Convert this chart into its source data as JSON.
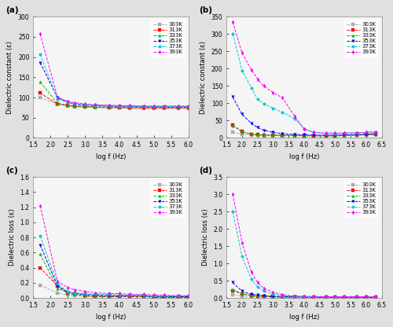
{
  "colors": [
    "#aaaaaa",
    "#ff0000",
    "#00bb00",
    "#0000ff",
    "#00cccc",
    "#ff00ff"
  ],
  "markers": [
    "s",
    "s",
    "^",
    "v",
    "o",
    "d"
  ],
  "labels": [
    "303K",
    "313K",
    "333K",
    "353K",
    "373K",
    "393K"
  ],
  "panel_labels": [
    "(a)",
    "(b)",
    "(c)",
    "(d)"
  ],
  "a_x": [
    1.7,
    2.2,
    2.5,
    2.7,
    3.0,
    3.3,
    3.7,
    4.0,
    4.3,
    4.7,
    5.0,
    5.3,
    5.7,
    6.0
  ],
  "a_y": [
    [
      100,
      83,
      79,
      77,
      76,
      75,
      74,
      74,
      73,
      73,
      73,
      73,
      73,
      73
    ],
    [
      111,
      84,
      80,
      78,
      77,
      76,
      75,
      75,
      74,
      74,
      74,
      74,
      74,
      74
    ],
    [
      138,
      86,
      81,
      79,
      78,
      77,
      77,
      76,
      76,
      76,
      76,
      76,
      76,
      76
    ],
    [
      186,
      100,
      88,
      83,
      81,
      80,
      79,
      78,
      78,
      77,
      77,
      77,
      77,
      77
    ],
    [
      207,
      96,
      88,
      85,
      83,
      81,
      80,
      79,
      79,
      78,
      78,
      78,
      78,
      78
    ],
    [
      257,
      101,
      90,
      87,
      84,
      82,
      81,
      80,
      80,
      79,
      79,
      79,
      79,
      79
    ]
  ],
  "b_x": [
    1.7,
    2.0,
    2.3,
    2.5,
    2.7,
    3.0,
    3.3,
    3.7,
    4.0,
    4.3,
    4.7,
    5.0,
    5.3,
    5.7,
    6.0,
    6.3
  ],
  "b_y": [
    [
      16,
      11,
      9,
      8,
      7,
      7,
      6,
      6,
      6,
      5,
      5,
      5,
      6,
      7,
      8,
      9
    ],
    [
      37,
      18,
      11,
      9,
      8,
      8,
      7,
      7,
      6,
      6,
      6,
      6,
      7,
      8,
      9,
      10
    ],
    [
      36,
      17,
      11,
      9,
      8,
      8,
      8,
      8,
      7,
      7,
      7,
      7,
      8,
      9,
      10,
      11
    ],
    [
      118,
      68,
      42,
      30,
      22,
      16,
      12,
      10,
      9,
      8,
      8,
      8,
      9,
      10,
      11,
      12
    ],
    [
      300,
      195,
      145,
      112,
      98,
      86,
      74,
      55,
      27,
      16,
      13,
      13,
      14,
      15,
      16,
      17
    ],
    [
      335,
      245,
      196,
      170,
      150,
      131,
      116,
      62,
      25,
      16,
      14,
      14,
      14,
      15,
      16,
      17
    ]
  ],
  "c_x": [
    1.7,
    2.2,
    2.5,
    2.7,
    3.0,
    3.3,
    3.7,
    4.0,
    4.3,
    4.7,
    5.0,
    5.3,
    5.7,
    6.0
  ],
  "c_y": [
    [
      0.17,
      0.07,
      0.04,
      0.03,
      0.02,
      0.02,
      0.02,
      0.02,
      0.02,
      0.02,
      0.01,
      0.01,
      0.01,
      0.01
    ],
    [
      0.4,
      0.16,
      0.07,
      0.05,
      0.03,
      0.02,
      0.02,
      0.02,
      0.02,
      0.02,
      0.01,
      0.01,
      0.01,
      0.01
    ],
    [
      0.58,
      0.13,
      0.07,
      0.05,
      0.04,
      0.03,
      0.03,
      0.03,
      0.03,
      0.02,
      0.02,
      0.02,
      0.02,
      0.02
    ],
    [
      0.7,
      0.16,
      0.08,
      0.06,
      0.05,
      0.04,
      0.03,
      0.03,
      0.03,
      0.03,
      0.02,
      0.02,
      0.02,
      0.02
    ],
    [
      0.82,
      0.19,
      0.09,
      0.07,
      0.06,
      0.05,
      0.05,
      0.04,
      0.04,
      0.04,
      0.03,
      0.03,
      0.03,
      0.03
    ],
    [
      1.22,
      0.22,
      0.14,
      0.11,
      0.09,
      0.07,
      0.06,
      0.06,
      0.05,
      0.05,
      0.04,
      0.04,
      0.03,
      0.03
    ]
  ],
  "d_x": [
    1.7,
    2.0,
    2.3,
    2.5,
    2.7,
    3.0,
    3.3,
    3.7,
    4.0,
    4.3,
    4.7,
    5.0,
    5.3,
    5.7,
    6.0,
    6.3
  ],
  "d_y": [
    [
      0.1,
      0.06,
      0.04,
      0.04,
      0.03,
      0.03,
      0.02,
      0.02,
      0.02,
      0.02,
      0.02,
      0.01,
      0.01,
      0.01,
      0.01,
      0.01
    ],
    [
      0.22,
      0.12,
      0.07,
      0.06,
      0.05,
      0.04,
      0.03,
      0.03,
      0.03,
      0.03,
      0.02,
      0.02,
      0.02,
      0.02,
      0.02,
      0.02
    ],
    [
      0.25,
      0.13,
      0.08,
      0.07,
      0.06,
      0.05,
      0.04,
      0.04,
      0.04,
      0.03,
      0.03,
      0.03,
      0.03,
      0.03,
      0.03,
      0.03
    ],
    [
      0.45,
      0.2,
      0.11,
      0.09,
      0.07,
      0.05,
      0.04,
      0.04,
      0.03,
      0.03,
      0.03,
      0.03,
      0.03,
      0.03,
      0.03,
      0.03
    ],
    [
      2.5,
      1.2,
      0.55,
      0.32,
      0.2,
      0.12,
      0.07,
      0.05,
      0.04,
      0.04,
      0.04,
      0.04,
      0.04,
      0.04,
      0.04,
      0.04
    ],
    [
      3.0,
      1.6,
      0.75,
      0.45,
      0.28,
      0.17,
      0.1,
      0.06,
      0.05,
      0.05,
      0.04,
      0.04,
      0.04,
      0.04,
      0.04,
      0.04
    ]
  ],
  "a_ylim": [
    0,
    300
  ],
  "b_ylim": [
    0,
    350
  ],
  "c_ylim": [
    0,
    1.6
  ],
  "d_ylim": [
    0,
    3.5
  ],
  "a_xlim": [
    1.5,
    6.0
  ],
  "b_xlim": [
    1.5,
    6.5
  ],
  "c_xlim": [
    1.5,
    6.0
  ],
  "d_xlim": [
    1.5,
    6.5
  ],
  "a_yticks": [
    0,
    50,
    100,
    150,
    200,
    250,
    300
  ],
  "b_yticks": [
    0,
    50,
    100,
    150,
    200,
    250,
    300,
    350
  ],
  "c_yticks": [
    0.0,
    0.2,
    0.4,
    0.6,
    0.8,
    1.0,
    1.2,
    1.4,
    1.6
  ],
  "d_yticks": [
    0.0,
    0.5,
    1.0,
    1.5,
    2.0,
    2.5,
    3.0,
    3.5
  ],
  "a_xticks": [
    1.5,
    2.0,
    2.5,
    3.0,
    3.5,
    4.0,
    4.5,
    5.0,
    5.5,
    6.0
  ],
  "b_xticks": [
    1.5,
    2.0,
    2.5,
    3.0,
    3.5,
    4.0,
    4.5,
    5.0,
    5.5,
    6.0,
    6.5
  ],
  "c_xticks": [
    1.5,
    2.0,
    2.5,
    3.0,
    3.5,
    4.0,
    4.5,
    5.0,
    5.5,
    6.0
  ],
  "d_xticks": [
    1.5,
    2.0,
    2.5,
    3.0,
    3.5,
    4.0,
    4.5,
    5.0,
    5.5,
    6.0,
    6.5
  ],
  "xlabel": "log f (Hz)",
  "ylabel_top": "Dielectric constant (ε)",
  "ylabel_bottom": "Dielectric loss (ε)",
  "bg_color": "#e0e0e0",
  "plot_bg": "#f5f5f5",
  "linewidth": 0.7,
  "markersize": 2.5,
  "legend_fontsize": 5.0,
  "axis_fontsize": 6.0,
  "tick_fontsize": 5.5,
  "panel_fontsize": 7.5
}
